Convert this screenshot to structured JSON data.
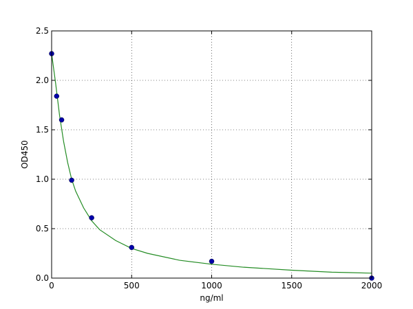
{
  "chart_data": {
    "type": "scatter",
    "title": "",
    "xlabel": "ng/ml",
    "ylabel": "OD450",
    "xlim": [
      0,
      2000
    ],
    "ylim": [
      0,
      2.5
    ],
    "grid": true,
    "x_ticks": [
      0,
      500,
      1000,
      1500,
      2000
    ],
    "x_tick_labels": [
      "0",
      "500",
      "1000",
      "1500",
      "2000"
    ],
    "y_ticks": [
      0.0,
      0.5,
      1.0,
      1.5,
      2.0,
      2.5
    ],
    "y_tick_labels": [
      "0.0",
      "0.5",
      "1.0",
      "1.5",
      "2.0",
      "2.5"
    ],
    "series": [
      {
        "kind": "points",
        "color": "#0000aa",
        "x": [
          0,
          31.25,
          62.5,
          125,
          250,
          500,
          1000,
          2000
        ],
        "y": [
          2.27,
          1.84,
          1.6,
          0.99,
          0.61,
          0.31,
          0.17,
          0.0
        ]
      },
      {
        "kind": "fit-line",
        "color": "#228b22",
        "x": [
          0,
          25,
          50,
          75,
          100,
          125,
          150,
          200,
          250,
          300,
          400,
          500,
          600,
          800,
          1000,
          1200,
          1500,
          1750,
          2000
        ],
        "y": [
          2.27,
          1.97,
          1.64,
          1.38,
          1.17,
          1.0,
          0.88,
          0.71,
          0.58,
          0.49,
          0.38,
          0.3,
          0.25,
          0.18,
          0.14,
          0.11,
          0.08,
          0.06,
          0.05
        ]
      }
    ]
  }
}
